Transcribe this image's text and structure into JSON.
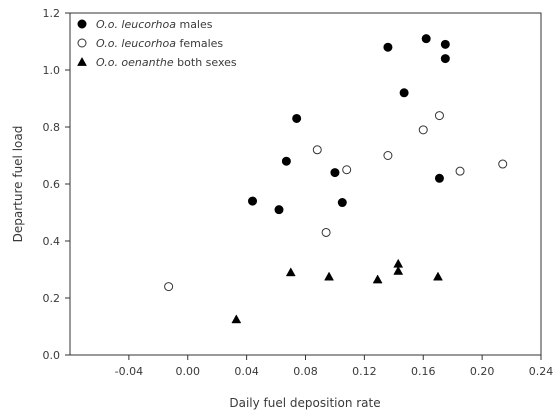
{
  "chart_data": {
    "type": "scatter",
    "title": "",
    "xlabel": "Daily fuel deposition rate",
    "ylabel": "Departure fuel load",
    "xlim": [
      -0.08,
      0.24
    ],
    "ylim": [
      0.0,
      1.2
    ],
    "xticks": [
      -0.04,
      0.0,
      0.04,
      0.08,
      0.12,
      0.16,
      0.2,
      0.24
    ],
    "xtick_labels": [
      "-0.04",
      "0.00",
      "0.04",
      "0.08",
      "0.12",
      "0.16",
      "0.20",
      "0.24"
    ],
    "yticks": [
      0.0,
      0.2,
      0.4,
      0.6,
      0.8,
      1.0,
      1.2
    ],
    "ytick_labels": [
      "0.0",
      "0.2",
      "0.4",
      "0.6",
      "0.8",
      "1.0",
      "1.2"
    ],
    "grid": false,
    "legend_position": "top-left",
    "series": [
      {
        "name_italic": "O.o. leucorhoa",
        "name_suffix": " males",
        "marker": "filled-circle",
        "color": "#000000",
        "points": [
          [
            0.044,
            0.54
          ],
          [
            0.062,
            0.51
          ],
          [
            0.067,
            0.68
          ],
          [
            0.074,
            0.83
          ],
          [
            0.1,
            0.64
          ],
          [
            0.105,
            0.535
          ],
          [
            0.136,
            1.08
          ],
          [
            0.147,
            0.92
          ],
          [
            0.162,
            1.11
          ],
          [
            0.171,
            0.62
          ],
          [
            0.175,
            1.09
          ],
          [
            0.175,
            1.04
          ]
        ]
      },
      {
        "name_italic": "O.o. leucorhoa",
        "name_suffix": " females",
        "marker": "open-circle",
        "color": "#000000",
        "points": [
          [
            -0.013,
            0.24
          ],
          [
            0.088,
            0.72
          ],
          [
            0.094,
            0.43
          ],
          [
            0.108,
            0.65
          ],
          [
            0.136,
            0.7
          ],
          [
            0.16,
            0.79
          ],
          [
            0.171,
            0.84
          ],
          [
            0.185,
            0.645
          ],
          [
            0.214,
            0.67
          ]
        ]
      },
      {
        "name_italic": "O.o. oenanthe",
        "name_suffix": " both sexes",
        "marker": "filled-triangle",
        "color": "#000000",
        "points": [
          [
            0.033,
            0.125
          ],
          [
            0.07,
            0.29
          ],
          [
            0.096,
            0.275
          ],
          [
            0.129,
            0.265
          ],
          [
            0.143,
            0.32
          ],
          [
            0.143,
            0.295
          ],
          [
            0.17,
            0.275
          ]
        ]
      }
    ]
  }
}
